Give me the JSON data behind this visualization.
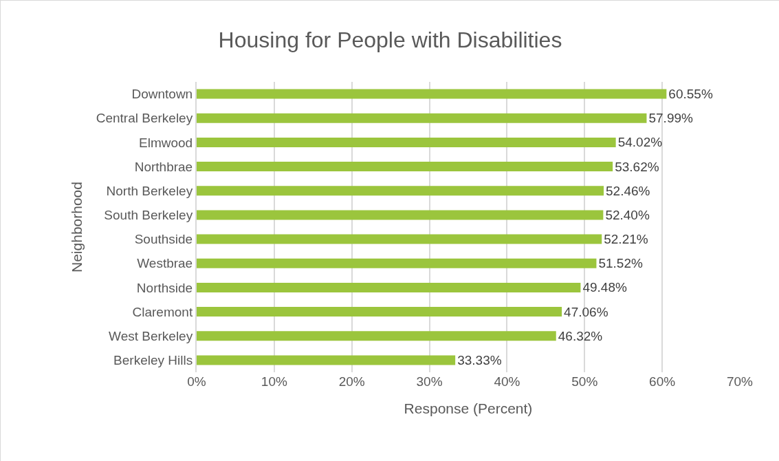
{
  "chart_data": {
    "type": "bar",
    "orientation": "horizontal",
    "title": "Housing for People with Disabilities",
    "xlabel": "Response (Percent)",
    "ylabel": "Neighborhood",
    "categories": [
      "Downtown",
      "Central Berkeley",
      "Elmwood",
      "Northbrae",
      "North Berkeley",
      "South Berkeley",
      "Southside",
      "Westbrae",
      "Northside",
      "Claremont",
      "West Berkeley",
      "Berkeley Hills"
    ],
    "values": [
      60.55,
      57.99,
      54.02,
      53.62,
      52.46,
      52.4,
      52.21,
      51.52,
      49.48,
      47.06,
      46.32,
      33.33
    ],
    "value_labels": [
      "60.55%",
      "57.99%",
      "54.02%",
      "53.62%",
      "52.46%",
      "52.40%",
      "52.21%",
      "51.52%",
      "49.48%",
      "47.06%",
      "46.32%",
      "33.33%"
    ],
    "color": "#9bc53d",
    "xlim": [
      0,
      70
    ],
    "xticks": [
      {
        "value": 0,
        "label": "0%"
      },
      {
        "value": 10,
        "label": "10%"
      },
      {
        "value": 20,
        "label": "20%"
      },
      {
        "value": 30,
        "label": "30%"
      },
      {
        "value": 40,
        "label": "40%"
      },
      {
        "value": 50,
        "label": "50%"
      },
      {
        "value": 60,
        "label": "60%"
      },
      {
        "value": 70,
        "label": "70%"
      }
    ],
    "grid": "x"
  }
}
